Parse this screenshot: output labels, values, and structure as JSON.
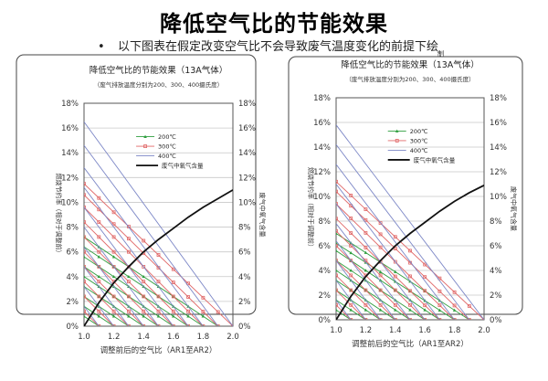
{
  "page": {
    "title": "降低空气比的节能效果",
    "subtitle": "以下图表在假定改变空气比不会导致废气温度变化的前提下绘",
    "subtitle_cont": "制"
  },
  "colors": {
    "c200": "#2e9e3e",
    "c300": "#e06666",
    "c400": "#7b86c6",
    "exhaust": "#111111"
  },
  "chart_data": [
    {
      "type": "line",
      "title": "降低空气比的节能效果（13A气体）",
      "subtitle": "（废气排放温度分别为200、300、400摄氏度）",
      "xlabel": "调整前后的空气比（AR1至AR2）",
      "ylabel_left": "燃烧节约率（相对于调整前）",
      "ylabel_right": "废气中氧气含量",
      "xlim": [
        1.0,
        2.0
      ],
      "ylim": [
        0,
        18
      ],
      "xticks": [
        "1.0",
        "1.2",
        "1.4",
        "1.6",
        "1.8",
        "2.0"
      ],
      "yticks": [
        "0%",
        "2%",
        "4%",
        "6%",
        "8%",
        "10%",
        "12%",
        "14%",
        "16%",
        "18%"
      ],
      "legend": [
        "200℃",
        "300℃",
        "400℃",
        "废气中氧气含量"
      ],
      "series": [
        {
          "name": "200℃",
          "color_key": "c200",
          "lines": [
            [
              1.1,
              0.8
            ],
            [
              1.2,
              1.6
            ],
            [
              1.3,
              2.4
            ],
            [
              1.4,
              3.2
            ],
            [
              1.5,
              4.0
            ],
            [
              1.6,
              4.8
            ],
            [
              1.7,
              5.6
            ],
            [
              1.8,
              6.4
            ],
            [
              1.9,
              7.2
            ]
          ]
        },
        {
          "name": "300℃",
          "color_key": "c300",
          "lines": [
            [
              1.1,
              1.2
            ],
            [
              1.2,
              2.4
            ],
            [
              1.3,
              3.6
            ],
            [
              1.4,
              4.8
            ],
            [
              1.5,
              6.0
            ],
            [
              1.6,
              7.2
            ],
            [
              1.7,
              8.4
            ],
            [
              1.8,
              9.6
            ],
            [
              1.9,
              10.6
            ],
            [
              2.0,
              11.5
            ]
          ]
        },
        {
          "name": "400℃",
          "color_key": "c400",
          "lines": [
            [
              1.1,
              1.6
            ],
            [
              1.2,
              3.2
            ],
            [
              1.3,
              4.8
            ],
            [
              1.4,
              6.4
            ],
            [
              1.5,
              8.0
            ],
            [
              1.6,
              9.6
            ],
            [
              1.7,
              11.2
            ],
            [
              1.8,
              12.8
            ],
            [
              1.9,
              14.6
            ],
            [
              2.0,
              16.5
            ]
          ]
        }
      ],
      "exhaust_o2": {
        "x": [
          1.0,
          1.1,
          1.2,
          1.3,
          1.4,
          1.5,
          1.6,
          1.7,
          1.8,
          1.9,
          2.0
        ],
        "y": [
          0,
          1.9,
          3.5,
          4.8,
          6.0,
          7.0,
          7.9,
          8.8,
          9.6,
          10.3,
          11.0
        ]
      }
    },
    {
      "type": "line",
      "title": "降低空气比的节能效果（13A气体）",
      "subtitle": "（废气排放温度分别为200、300、400摄氏度）",
      "xlabel": "调整前后的空气比（AR1至AR2）",
      "ylabel_left": "燃烧节约率（相对于调整前）",
      "ylabel_right": "废气中氧气含量",
      "xlim": [
        1.0,
        2.0
      ],
      "ylim": [
        0,
        18
      ],
      "xticks": [
        "1.0",
        "1.2",
        "1.4",
        "1.6",
        "1.8",
        "2.0"
      ],
      "yticks": [
        "0%",
        "2%",
        "4%",
        "6%",
        "8%",
        "10%",
        "12%",
        "14%",
        "16%",
        "18%"
      ],
      "legend": [
        "200℃",
        "300℃",
        "400℃",
        "废气中氧气含量"
      ],
      "series": [
        {
          "name": "200℃",
          "color_key": "c200",
          "lines": [
            [
              1.1,
              0.8
            ],
            [
              1.2,
              1.6
            ],
            [
              1.3,
              2.4
            ],
            [
              1.4,
              3.2
            ],
            [
              1.5,
              4.0
            ],
            [
              1.6,
              4.8
            ],
            [
              1.7,
              5.6
            ],
            [
              1.8,
              6.2
            ],
            [
              1.9,
              7.0
            ]
          ]
        },
        {
          "name": "300℃",
          "color_key": "c300",
          "lines": [
            [
              1.1,
              1.2
            ],
            [
              1.2,
              2.4
            ],
            [
              1.3,
              3.6
            ],
            [
              1.4,
              4.8
            ],
            [
              1.5,
              6.0
            ],
            [
              1.6,
              7.2
            ],
            [
              1.7,
              8.2
            ],
            [
              1.8,
              9.4
            ],
            [
              1.9,
              10.4
            ],
            [
              2.0,
              11.2
            ]
          ]
        },
        {
          "name": "400℃",
          "color_key": "c400",
          "lines": [
            [
              1.1,
              1.6
            ],
            [
              1.2,
              3.2
            ],
            [
              1.3,
              4.8
            ],
            [
              1.4,
              6.4
            ],
            [
              1.5,
              7.8
            ],
            [
              1.6,
              9.4
            ],
            [
              1.7,
              11.0
            ],
            [
              1.8,
              12.6
            ],
            [
              1.9,
              14.2
            ],
            [
              2.0,
              15.8
            ]
          ]
        }
      ],
      "exhaust_o2": {
        "x": [
          1.0,
          1.1,
          1.2,
          1.3,
          1.4,
          1.5,
          1.6,
          1.7,
          1.8,
          1.9,
          2.0
        ],
        "y": [
          0,
          1.9,
          3.5,
          4.8,
          6.0,
          7.0,
          7.9,
          8.8,
          9.6,
          10.3,
          10.9
        ]
      }
    }
  ]
}
